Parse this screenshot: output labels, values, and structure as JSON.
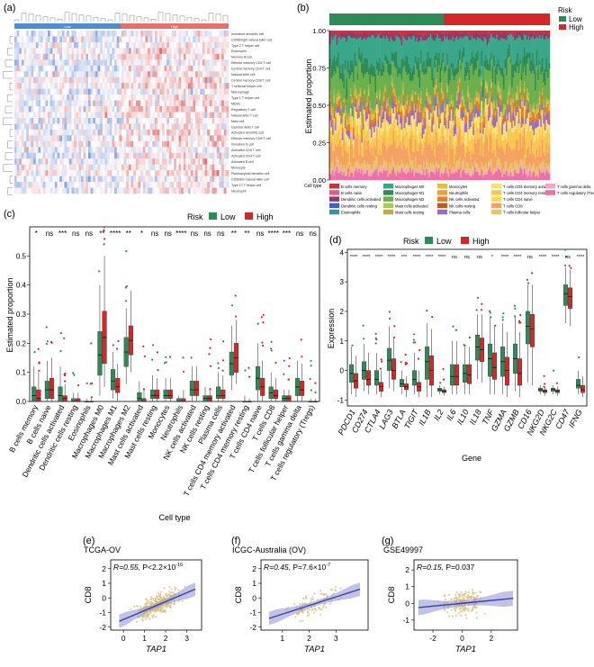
{
  "colors": {
    "low": "#2e8b57",
    "high": "#d62728",
    "fit_line": "#3b3f9e",
    "ci_band": "#8e90d6",
    "point": "#d8c07a"
  },
  "panel_labels": {
    "a": "(a)",
    "b": "(b)",
    "c": "(c)",
    "d": "(d)",
    "e": "(e)",
    "f": "(f)",
    "g": "(g)"
  },
  "chart_data": [
    {
      "id": "a",
      "type": "heatmap",
      "groups": [
        "Low",
        "High"
      ],
      "rows": [
        "Immature dendritic cell",
        "CD56bright natural killer cell",
        "Type 2 T helper cell",
        "Eosinophil",
        "Memory B cell",
        "Effector memory CD4 T cell",
        "Central memory CD4 T cell",
        "Natural killer cell",
        "Central memory CD8 T cell",
        "T follicular helper cell",
        "Macrophage",
        "Type 1 T helper cell",
        "MDSC",
        "Regulatory T cell",
        "Natural killer T cell",
        "Mast cell",
        "Gamma delta T cell",
        "Activated dendritic cell",
        "Effector memory CD8 T cell",
        "Immature B cell",
        "Activated CD8 T cell",
        "Activated CD4 T cell",
        "Activated B cell",
        "Monocyte",
        "Plasmacytoid dendritic cell",
        "CD56dim natural killer cell",
        "Type 17 T helper cell",
        "Neutrophil"
      ]
    },
    {
      "id": "b",
      "type": "area",
      "legend_title": "Risk",
      "risk_groups": [
        "Low",
        "High"
      ],
      "ylabel": "Estimated proportion",
      "yticks": [
        "0.00",
        "0.25",
        "0.50",
        "0.75",
        "1.00"
      ],
      "ylim": [
        0,
        1
      ],
      "cell_type_label": "Cell type",
      "cell_types": [
        "B cells memory",
        "B cells naive",
        "Dendritic cells activated",
        "Dendritic cells resting",
        "Eosinophils",
        "Macrophages M0",
        "Macrophages M1",
        "Macrophages M2",
        "Mast cells activated",
        "Mast cells resting",
        "Monocytes",
        "Neutrophils",
        "NK cells activated",
        "NK cells resting",
        "Plasma cells",
        "T cells CD4 memory activated",
        "T cells CD4 memory resting",
        "T cells CD4 naive",
        "T cells CD8",
        "T cells follicular helper",
        "T cells gamma delta",
        "T cells regulatory (Tregs)"
      ],
      "cell_colors": [
        "#c8323c",
        "#e0607a",
        "#8e3a6e",
        "#4060c8",
        "#3a8fb0",
        "#3aa68a",
        "#2e8b57",
        "#6ab04c",
        "#a7c957",
        "#b8b04a",
        "#e0c040",
        "#f0a030",
        "#e87d2a",
        "#c05a1a",
        "#9a6bc8",
        "#f6e27a",
        "#f9c74f",
        "#ffd93d",
        "#f4a261",
        "#e9c46a",
        "#f2a7c3",
        "#ef6fa6"
      ],
      "layers": [
        {
          "cell": "T cells regulatory (Tregs)",
          "mean": 0.05
        },
        {
          "cell": "T cells gamma delta",
          "mean": 0.02
        },
        {
          "cell": "T cells follicular helper",
          "mean": 0.04
        },
        {
          "cell": "T cells CD8",
          "mean": 0.12
        },
        {
          "cell": "T cells CD4 memory resting",
          "mean": 0.1
        },
        {
          "cell": "T cells CD4 memory activated",
          "mean": 0.07
        },
        {
          "cell": "Plasma cells",
          "mean": 0.05
        },
        {
          "cell": "NK cells activated",
          "mean": 0.04
        },
        {
          "cell": "Monocytes",
          "mean": 0.03
        },
        {
          "cell": "Mast cells resting",
          "mean": 0.03
        },
        {
          "cell": "Macrophages M2",
          "mean": 0.17
        },
        {
          "cell": "Macrophages M1",
          "mean": 0.08
        },
        {
          "cell": "Macrophages M0",
          "mean": 0.15
        },
        {
          "cell": "Dendritic cells activated",
          "mean": 0.03
        },
        {
          "cell": "B cells memory",
          "mean": 0.02
        }
      ]
    },
    {
      "id": "c",
      "type": "bar",
      "subtype": "boxplot",
      "legend_title": "Risk",
      "series": [
        {
          "name": "Low"
        },
        {
          "name": "High"
        }
      ],
      "xlabel": "Cell type",
      "ylabel": "Estimated proportion",
      "ylim": [
        0,
        0.6
      ],
      "yticks": [
        "0.0",
        "0.1",
        "0.2",
        "0.3",
        "0.4",
        "0.5"
      ],
      "categories": [
        "B cells memory",
        "B cells naive",
        "Dendritic cells activated",
        "Dendritic cells resting",
        "Eosinophils",
        "Macrophages M0",
        "Macrophages M1",
        "Macrophages M2",
        "Mast cells activated",
        "Mast cells resting",
        "Monocytes",
        "Neutrophils",
        "NK cells activated",
        "NK cells resting",
        "Plasma cells",
        "T cells CD4 memory activated",
        "T cells CD4 memory resting",
        "T cells CD4 naive",
        "T cells CD8",
        "T cells follicular helper",
        "T cells gamma delta",
        "T cells regulatory (Tregs)"
      ],
      "significance": [
        "*",
        "ns",
        "***",
        "ns",
        "ns",
        "**",
        "****",
        "**",
        "*",
        "ns",
        "ns",
        "****",
        "ns",
        "ns",
        "ns",
        "**",
        "**",
        "ns",
        "****",
        "***",
        "ns",
        "ns"
      ],
      "low": [
        [
          0,
          0,
          0.02,
          0.05,
          0.12
        ],
        [
          0,
          0.01,
          0.04,
          0.07,
          0.14
        ],
        [
          0,
          0,
          0.02,
          0.05,
          0.12
        ],
        [
          0,
          0,
          0,
          0.01,
          0.03
        ],
        [
          0,
          0,
          0,
          0,
          0.01
        ],
        [
          0.02,
          0.09,
          0.16,
          0.24,
          0.4
        ],
        [
          0.01,
          0.04,
          0.07,
          0.11,
          0.17
        ],
        [
          0.06,
          0.12,
          0.17,
          0.22,
          0.32
        ],
        [
          0,
          0,
          0.01,
          0.03,
          0.07
        ],
        [
          0,
          0.01,
          0.02,
          0.04,
          0.09
        ],
        [
          0,
          0.01,
          0.02,
          0.04,
          0.08
        ],
        [
          0,
          0,
          0,
          0.01,
          0.02
        ],
        [
          0,
          0.02,
          0.04,
          0.07,
          0.12
        ],
        [
          0,
          0,
          0.01,
          0.02,
          0.05
        ],
        [
          0,
          0.01,
          0.02,
          0.05,
          0.1
        ],
        [
          0.04,
          0.09,
          0.13,
          0.17,
          0.26
        ],
        [
          0,
          0,
          0,
          0,
          0.02
        ],
        [
          0,
          0.04,
          0.08,
          0.12,
          0.2
        ],
        [
          0,
          0.01,
          0.03,
          0.05,
          0.1
        ],
        [
          0,
          0,
          0.01,
          0.02,
          0.04
        ],
        [
          0,
          0.02,
          0.05,
          0.08,
          0.14
        ],
        [
          0,
          0,
          0,
          0,
          0.01
        ]
      ],
      "high": [
        [
          0,
          0,
          0.01,
          0.04,
          0.1
        ],
        [
          0,
          0.01,
          0.04,
          0.08,
          0.15
        ],
        [
          0,
          0,
          0.01,
          0.02,
          0.06
        ],
        [
          0,
          0,
          0,
          0.01,
          0.03
        ],
        [
          0,
          0,
          0,
          0,
          0.01
        ],
        [
          0.05,
          0.13,
          0.22,
          0.31,
          0.5
        ],
        [
          0,
          0.03,
          0.05,
          0.08,
          0.13
        ],
        [
          0.1,
          0.16,
          0.21,
          0.26,
          0.38
        ],
        [
          0,
          0,
          0,
          0.01,
          0.04
        ],
        [
          0,
          0.01,
          0.02,
          0.04,
          0.08
        ],
        [
          0,
          0.01,
          0.02,
          0.04,
          0.08
        ],
        [
          0,
          0,
          0,
          0.01,
          0.04
        ],
        [
          0,
          0.02,
          0.04,
          0.07,
          0.12
        ],
        [
          0,
          0,
          0.01,
          0.02,
          0.04
        ],
        [
          0,
          0.01,
          0.02,
          0.04,
          0.09
        ],
        [
          0.06,
          0.1,
          0.15,
          0.2,
          0.28
        ],
        [
          0,
          0,
          0,
          0,
          0.01
        ],
        [
          0,
          0.02,
          0.05,
          0.08,
          0.14
        ],
        [
          0,
          0.01,
          0.02,
          0.04,
          0.08
        ],
        [
          0,
          0,
          0.01,
          0.02,
          0.04
        ],
        [
          0,
          0.02,
          0.04,
          0.07,
          0.13
        ],
        [
          0,
          0,
          0,
          0,
          0.01
        ]
      ]
    },
    {
      "id": "d",
      "type": "bar",
      "subtype": "boxplot",
      "legend_title": "Risk",
      "series": [
        {
          "name": "Low"
        },
        {
          "name": "High"
        }
      ],
      "xlabel": "Gene",
      "ylabel": "Expression",
      "ylim": [
        -1.2,
        4.1
      ],
      "yticks": [
        "-1",
        "0",
        "1",
        "2",
        "3",
        "4"
      ],
      "categories": [
        "PDCD1",
        "CD274",
        "CTLA4",
        "LAG3",
        "BTLA",
        "TIGIT",
        "IL1B",
        "IL2",
        "IL6",
        "IL10",
        "IL18",
        "TNF",
        "GZMA",
        "GZMB",
        "CD16",
        "NKG2D",
        "NKG2C",
        "CD47",
        "IFNG"
      ],
      "significance": [
        "****",
        "****",
        "****",
        "****",
        "***",
        "****",
        "****",
        "****",
        "ns",
        "ns",
        "ns",
        "*",
        "****",
        "****",
        "ns",
        "****",
        "****",
        "ns",
        "****"
      ],
      "low": [
        [
          -0.8,
          -0.4,
          -0.1,
          0.2,
          0.8
        ],
        [
          -0.7,
          -0.3,
          0.0,
          0.3,
          0.9
        ],
        [
          -0.8,
          -0.5,
          -0.3,
          0.0,
          0.6
        ],
        [
          -0.6,
          0.0,
          0.35,
          0.75,
          1.5
        ],
        [
          -0.8,
          -0.55,
          -0.45,
          -0.3,
          0.0
        ],
        [
          -0.8,
          -0.5,
          -0.3,
          0.0,
          0.6
        ],
        [
          -0.9,
          -0.3,
          0.3,
          0.8,
          1.6
        ],
        [
          -0.8,
          -0.7,
          -0.65,
          -0.6,
          -0.5
        ],
        [
          -0.8,
          -0.5,
          -0.2,
          0.2,
          1.0
        ],
        [
          -0.8,
          -0.4,
          -0.1,
          0.2,
          0.8
        ],
        [
          -0.3,
          0.35,
          0.8,
          1.2,
          1.9
        ],
        [
          -0.8,
          -0.2,
          0.4,
          0.9,
          1.8
        ],
        [
          -0.8,
          -0.2,
          0.3,
          0.8,
          1.6
        ],
        [
          -0.7,
          -0.1,
          0.4,
          0.9,
          1.8
        ],
        [
          -0.4,
          0.9,
          1.5,
          2.0,
          2.9
        ],
        [
          -0.8,
          -0.7,
          -0.65,
          -0.6,
          -0.5
        ],
        [
          -0.8,
          -0.7,
          -0.65,
          -0.6,
          -0.5
        ],
        [
          1.6,
          2.2,
          2.6,
          2.9,
          3.5
        ],
        [
          -0.8,
          -0.6,
          -0.5,
          -0.3,
          0.0
        ]
      ],
      "high": [
        [
          -0.9,
          -0.6,
          -0.35,
          -0.1,
          0.5
        ],
        [
          -0.8,
          -0.5,
          -0.3,
          0.0,
          0.6
        ],
        [
          -0.9,
          -0.7,
          -0.55,
          -0.4,
          0.0
        ],
        [
          -0.7,
          -0.3,
          0.0,
          0.4,
          1.1
        ],
        [
          -0.9,
          -0.65,
          -0.55,
          -0.45,
          -0.2
        ],
        [
          -0.9,
          -0.7,
          -0.55,
          -0.4,
          0.0
        ],
        [
          -0.9,
          -0.5,
          0.0,
          0.5,
          1.4
        ],
        [
          -0.85,
          -0.75,
          -0.7,
          -0.65,
          -0.55
        ],
        [
          -0.8,
          -0.5,
          -0.2,
          0.2,
          1.0
        ],
        [
          -0.8,
          -0.45,
          -0.15,
          0.2,
          0.8
        ],
        [
          -0.4,
          0.3,
          0.7,
          1.1,
          1.9
        ],
        [
          -0.8,
          -0.3,
          0.1,
          0.6,
          1.5
        ],
        [
          -0.9,
          -0.5,
          0.0,
          0.45,
          1.3
        ],
        [
          -0.9,
          -0.5,
          -0.1,
          0.4,
          1.3
        ],
        [
          -0.5,
          0.8,
          1.4,
          1.9,
          2.9
        ],
        [
          -0.85,
          -0.75,
          -0.7,
          -0.65,
          -0.55
        ],
        [
          -0.85,
          -0.75,
          -0.7,
          -0.65,
          -0.55
        ],
        [
          1.5,
          2.1,
          2.5,
          2.8,
          3.4
        ],
        [
          -0.9,
          -0.75,
          -0.65,
          -0.5,
          -0.2
        ]
      ]
    },
    {
      "id": "e",
      "type": "scatter",
      "title": "TCGA-OV",
      "stat_r": "R=0.55, ",
      "stat_p": "P<2.2×10",
      "stat_exp": "-16",
      "xlabel": "TAP1",
      "ylabel": "CD8",
      "xlim": [
        -0.6,
        3.7
      ],
      "ylim": [
        -2.2,
        2.6
      ],
      "xticks": [
        0,
        1,
        2,
        3
      ],
      "yticks": [
        -2,
        -1,
        0,
        1,
        2
      ],
      "fit": {
        "x": [
          -0.2,
          3.4
        ],
        "y": [
          -1.6,
          0.6
        ]
      },
      "x_center": 1.6,
      "x_spread": 0.75,
      "n": 320
    },
    {
      "id": "f",
      "type": "scatter",
      "title": "ICGC-Australia (OV)",
      "stat_r": "R=0.45, ",
      "stat_p": "P=7.6×10",
      "stat_exp": "-7",
      "xlabel": "TAP1",
      "ylabel": "CD8",
      "xlim": [
        0.2,
        4.2
      ],
      "ylim": [
        -2.2,
        2.6
      ],
      "xticks": [
        1,
        2,
        3
      ],
      "yticks": [
        -2,
        -1,
        0,
        1,
        2
      ],
      "fit": {
        "x": [
          0.5,
          3.9
        ],
        "y": [
          -1.4,
          0.6
        ]
      },
      "x_center": 2.2,
      "x_spread": 0.75,
      "n": 110
    },
    {
      "id": "g",
      "type": "scatter",
      "title": "GSE49997",
      "stat_r": "R=0.15, ",
      "stat_p": "P=0.037",
      "stat_exp": "",
      "xlabel": "TAP1",
      "ylabel": "CD8",
      "xlim": [
        -3.3,
        3.8
      ],
      "ylim": [
        -1.6,
        2.6
      ],
      "xticks": [
        -2,
        0,
        2
      ],
      "yticks": [
        -1,
        0,
        1,
        2
      ],
      "fit": {
        "x": [
          -3.0,
          3.5
        ],
        "y": [
          -0.25,
          0.3
        ]
      },
      "x_center": 0.1,
      "x_spread": 1.0,
      "n": 190
    }
  ]
}
